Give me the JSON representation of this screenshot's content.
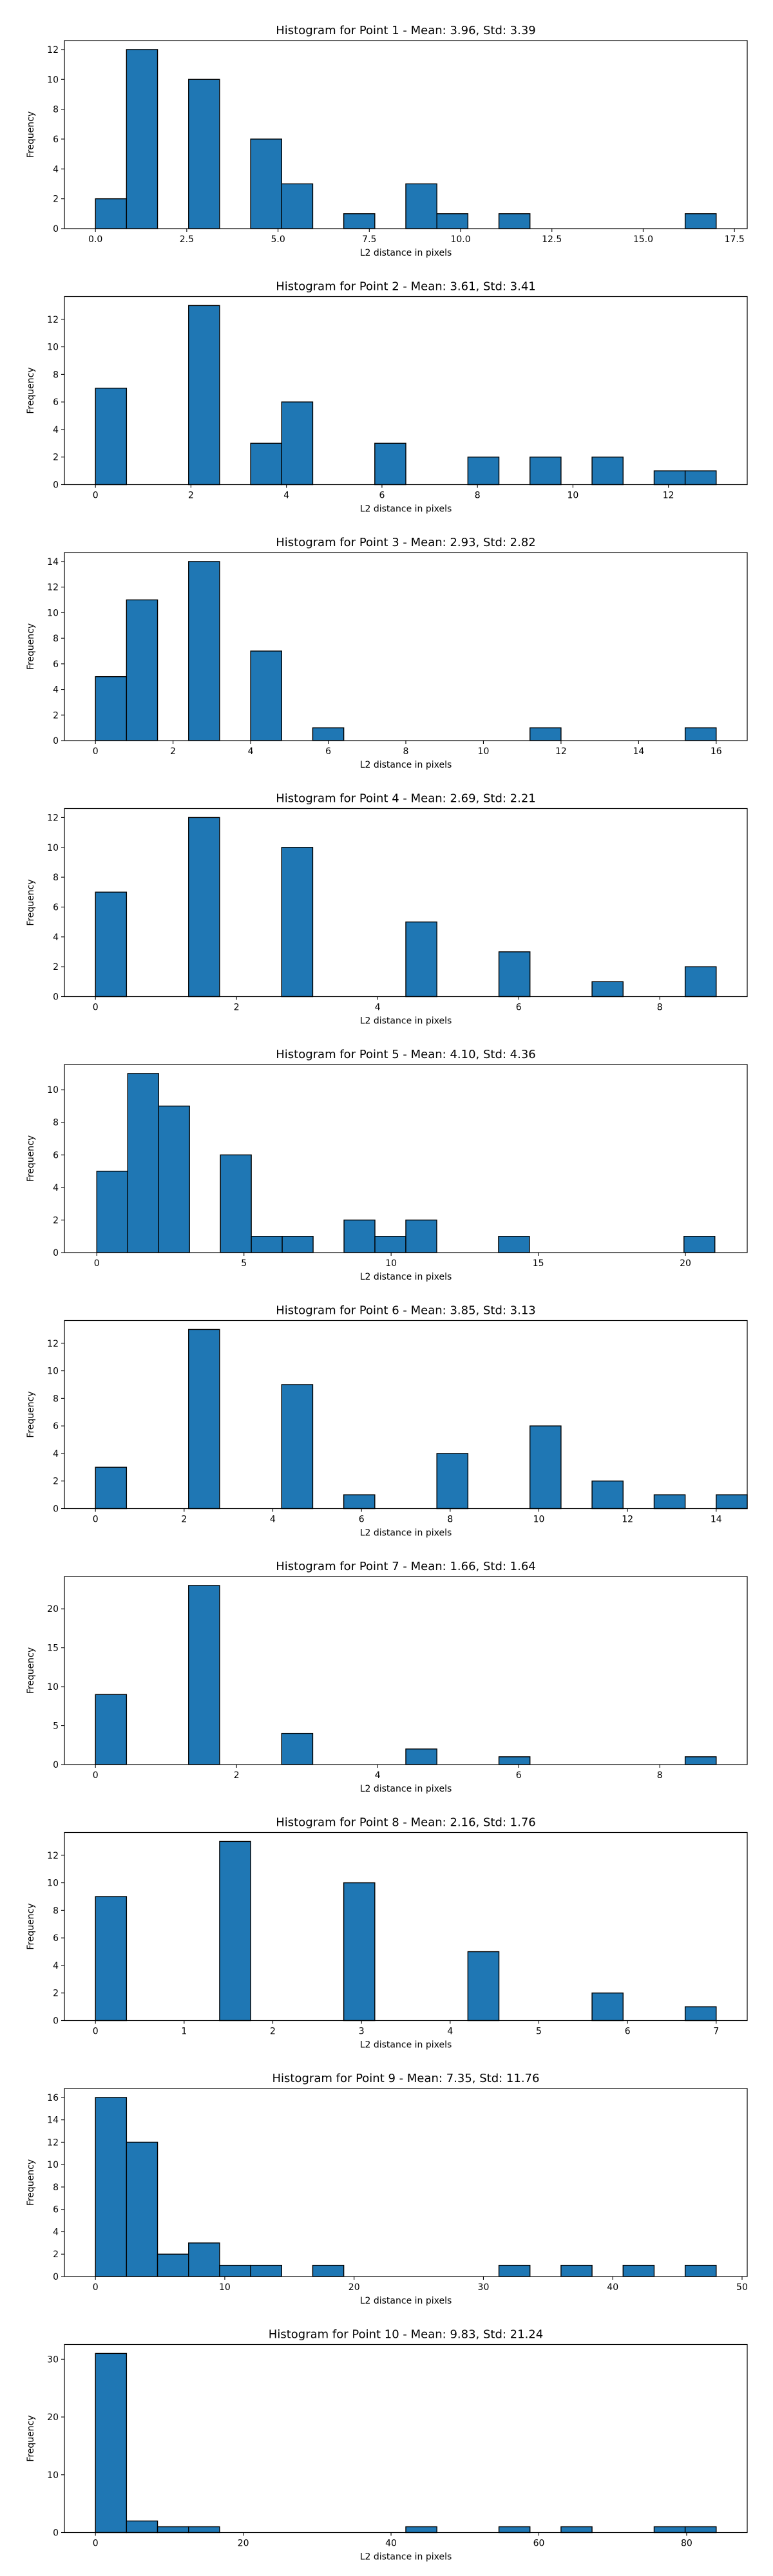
{
  "chart_data": [
    {
      "type": "bar",
      "title": "Histogram for Point 1 - Mean: 3.96, Std: 3.39",
      "xlabel": "L2 distance in pixels",
      "ylabel": "Frequency",
      "xlim": [
        -0.85,
        17.85
      ],
      "ylim": [
        0,
        12.6
      ],
      "xticks": [
        0,
        2.5,
        5,
        7.5,
        10,
        12.5,
        15,
        17.5
      ],
      "xtick_labels": [
        "0.0",
        "2.5",
        "5.0",
        "7.5",
        "10.0",
        "12.5",
        "15.0",
        "17.5"
      ],
      "yticks": [
        0,
        2,
        4,
        6,
        8,
        10,
        12
      ],
      "ytick_labels": [
        "0",
        "2",
        "4",
        "6",
        "8",
        "10",
        "12"
      ],
      "bin_start": 0,
      "bin_width": 0.85,
      "counts": [
        2,
        12,
        0,
        10,
        0,
        6,
        3,
        0,
        1,
        0,
        3,
        1,
        0,
        1,
        0,
        0,
        0,
        0,
        0,
        1
      ]
    },
    {
      "type": "bar",
      "title": "Histogram for Point 2 - Mean: 3.61, Std: 3.41",
      "xlabel": "L2 distance in pixels",
      "ylabel": "Frequency",
      "xlim": [
        -0.65,
        13.65
      ],
      "ylim": [
        0,
        13.65
      ],
      "xticks": [
        0,
        2,
        4,
        6,
        8,
        10,
        12
      ],
      "xtick_labels": [
        "0",
        "2",
        "4",
        "6",
        "8",
        "10",
        "12"
      ],
      "yticks": [
        0,
        2,
        4,
        6,
        8,
        10,
        12
      ],
      "ytick_labels": [
        "0",
        "2",
        "4",
        "6",
        "8",
        "10",
        "12"
      ],
      "bin_start": 0,
      "bin_width": 0.65,
      "counts": [
        7,
        0,
        0,
        13,
        0,
        3,
        6,
        0,
        0,
        3,
        0,
        0,
        2,
        0,
        2,
        0,
        2,
        0,
        1,
        1
      ]
    },
    {
      "type": "bar",
      "title": "Histogram for Point 3 - Mean: 2.93, Std: 2.82",
      "xlabel": "L2 distance in pixels",
      "ylabel": "Frequency",
      "xlim": [
        -0.8,
        16.8
      ],
      "ylim": [
        0,
        14.7
      ],
      "xticks": [
        0,
        2,
        4,
        6,
        8,
        10,
        12,
        14,
        16
      ],
      "xtick_labels": [
        "0",
        "2",
        "4",
        "6",
        "8",
        "10",
        "12",
        "14",
        "16"
      ],
      "yticks": [
        0,
        2,
        4,
        6,
        8,
        10,
        12,
        14
      ],
      "ytick_labels": [
        "0",
        "2",
        "4",
        "6",
        "8",
        "10",
        "12",
        "14"
      ],
      "bin_start": 0,
      "bin_width": 0.8,
      "counts": [
        5,
        11,
        0,
        14,
        0,
        7,
        0,
        1,
        0,
        0,
        0,
        0,
        0,
        0,
        1,
        0,
        0,
        0,
        0,
        1
      ]
    },
    {
      "type": "bar",
      "title": "Histogram for Point 4 - Mean: 2.69, Std: 2.21",
      "xlabel": "L2 distance in pixels",
      "ylabel": "Frequency",
      "xlim": [
        -0.44,
        9.24
      ],
      "ylim": [
        0,
        12.6
      ],
      "xticks": [
        0,
        2,
        4,
        6,
        8
      ],
      "xtick_labels": [
        "0",
        "2",
        "4",
        "6",
        "8"
      ],
      "yticks": [
        0,
        2,
        4,
        6,
        8,
        10,
        12
      ],
      "ytick_labels": [
        "0",
        "2",
        "4",
        "6",
        "8",
        "10",
        "12"
      ],
      "bin_start": 0,
      "bin_width": 0.44,
      "counts": [
        7,
        0,
        0,
        12,
        0,
        0,
        10,
        0,
        0,
        0,
        5,
        0,
        0,
        3,
        0,
        0,
        1,
        0,
        0,
        2
      ]
    },
    {
      "type": "bar",
      "title": "Histogram for Point 5 - Mean: 4.10, Std: 4.36",
      "xlabel": "L2 distance in pixels",
      "ylabel": "Frequency",
      "xlim": [
        -1.1,
        22.1
      ],
      "ylim": [
        0,
        11.55
      ],
      "xticks": [
        0,
        5,
        10,
        15,
        20
      ],
      "xtick_labels": [
        "0",
        "5",
        "10",
        "15",
        "20"
      ],
      "yticks": [
        0,
        2,
        4,
        6,
        8,
        10
      ],
      "ytick_labels": [
        "0",
        "2",
        "4",
        "6",
        "8",
        "10"
      ],
      "bin_start": 0,
      "bin_width": 1.05,
      "counts": [
        5,
        11,
        9,
        0,
        6,
        1,
        1,
        0,
        2,
        1,
        2,
        0,
        0,
        1,
        0,
        0,
        0,
        0,
        0,
        1
      ]
    },
    {
      "type": "bar",
      "title": "Histogram for Point 6 - Mean: 3.85, Std: 3.13",
      "xlabel": "L2 distance in pixels",
      "ylabel": "Frequency",
      "xlim": [
        -0.7,
        14.7
      ],
      "ylim": [
        0,
        13.65
      ],
      "xticks": [
        0,
        2,
        4,
        6,
        8,
        10,
        12,
        14
      ],
      "xtick_labels": [
        "0",
        "2",
        "4",
        "6",
        "8",
        "10",
        "12",
        "14"
      ],
      "yticks": [
        0,
        2,
        4,
        6,
        8,
        10,
        12
      ],
      "ytick_labels": [
        "0",
        "2",
        "4",
        "6",
        "8",
        "10",
        "12"
      ],
      "bin_start": 0,
      "bin_width": 0.7,
      "counts": [
        3,
        0,
        0,
        13,
        0,
        0,
        9,
        0,
        1,
        0,
        0,
        4,
        0,
        0,
        6,
        0,
        2,
        0,
        1,
        0,
        1
      ]
    },
    {
      "type": "bar",
      "title": "Histogram for Point 7 - Mean: 1.66, Std: 1.64",
      "xlabel": "L2 distance in pixels",
      "ylabel": "Frequency",
      "xlim": [
        -0.44,
        9.24
      ],
      "ylim": [
        0,
        24.15
      ],
      "xticks": [
        0,
        2,
        4,
        6,
        8
      ],
      "xtick_labels": [
        "0",
        "2",
        "4",
        "6",
        "8"
      ],
      "yticks": [
        0,
        5,
        10,
        15,
        20
      ],
      "ytick_labels": [
        "0",
        "5",
        "10",
        "15",
        "20"
      ],
      "bin_start": 0,
      "bin_width": 0.44,
      "counts": [
        9,
        0,
        0,
        23,
        0,
        0,
        4,
        0,
        0,
        0,
        2,
        0,
        0,
        1,
        0,
        0,
        0,
        0,
        0,
        1
      ]
    },
    {
      "type": "bar",
      "title": "Histogram for Point 8 - Mean: 2.16, Std: 1.76",
      "xlabel": "L2 distance in pixels",
      "ylabel": "Frequency",
      "xlim": [
        -0.35,
        7.35
      ],
      "ylim": [
        0,
        13.65
      ],
      "xticks": [
        0,
        1,
        2,
        3,
        4,
        5,
        6,
        7
      ],
      "xtick_labels": [
        "0",
        "1",
        "2",
        "3",
        "4",
        "5",
        "6",
        "7"
      ],
      "yticks": [
        0,
        2,
        4,
        6,
        8,
        10,
        12
      ],
      "ytick_labels": [
        "0",
        "2",
        "4",
        "6",
        "8",
        "10",
        "12"
      ],
      "bin_start": 0,
      "bin_width": 0.35,
      "counts": [
        9,
        0,
        0,
        0,
        13,
        0,
        0,
        0,
        10,
        0,
        0,
        0,
        5,
        0,
        0,
        0,
        2,
        0,
        0,
        1
      ]
    },
    {
      "type": "bar",
      "title": "Histogram for Point 9 - Mean: 7.35, Std: 11.76",
      "xlabel": "L2 distance in pixels",
      "ylabel": "Frequency",
      "xlim": [
        -2.4,
        50.4
      ],
      "ylim": [
        0,
        16.8
      ],
      "xticks": [
        0,
        10,
        20,
        30,
        40,
        50
      ],
      "xtick_labels": [
        "0",
        "10",
        "20",
        "30",
        "40",
        "50"
      ],
      "yticks": [
        0,
        2,
        4,
        6,
        8,
        10,
        12,
        14,
        16
      ],
      "ytick_labels": [
        "0",
        "2",
        "4",
        "6",
        "8",
        "10",
        "12",
        "14",
        "16"
      ],
      "bin_start": 0,
      "bin_width": 2.4,
      "counts": [
        16,
        12,
        2,
        3,
        1,
        1,
        0,
        1,
        0,
        0,
        0,
        0,
        0,
        1,
        0,
        1,
        0,
        1,
        0,
        1
      ]
    },
    {
      "type": "bar",
      "title": "Histogram for Point 10 - Mean: 9.83, Std: 21.24",
      "xlabel": "L2 distance in pixels",
      "ylabel": "Frequency",
      "xlim": [
        -4.2,
        88.2
      ],
      "ylim": [
        0,
        32.55
      ],
      "xticks": [
        0,
        20,
        40,
        60,
        80
      ],
      "xtick_labels": [
        "0",
        "20",
        "40",
        "60",
        "80"
      ],
      "yticks": [
        0,
        10,
        20,
        30
      ],
      "ytick_labels": [
        "0",
        "10",
        "20",
        "30"
      ],
      "bin_start": 0,
      "bin_width": 4.2,
      "counts": [
        31,
        2,
        1,
        1,
        0,
        0,
        0,
        0,
        0,
        0,
        1,
        0,
        0,
        1,
        0,
        1,
        0,
        0,
        1,
        1
      ]
    }
  ],
  "colors": {
    "bar_fill": "#1f77b4",
    "bar_edge": "#000000",
    "axis": "#000000"
  }
}
